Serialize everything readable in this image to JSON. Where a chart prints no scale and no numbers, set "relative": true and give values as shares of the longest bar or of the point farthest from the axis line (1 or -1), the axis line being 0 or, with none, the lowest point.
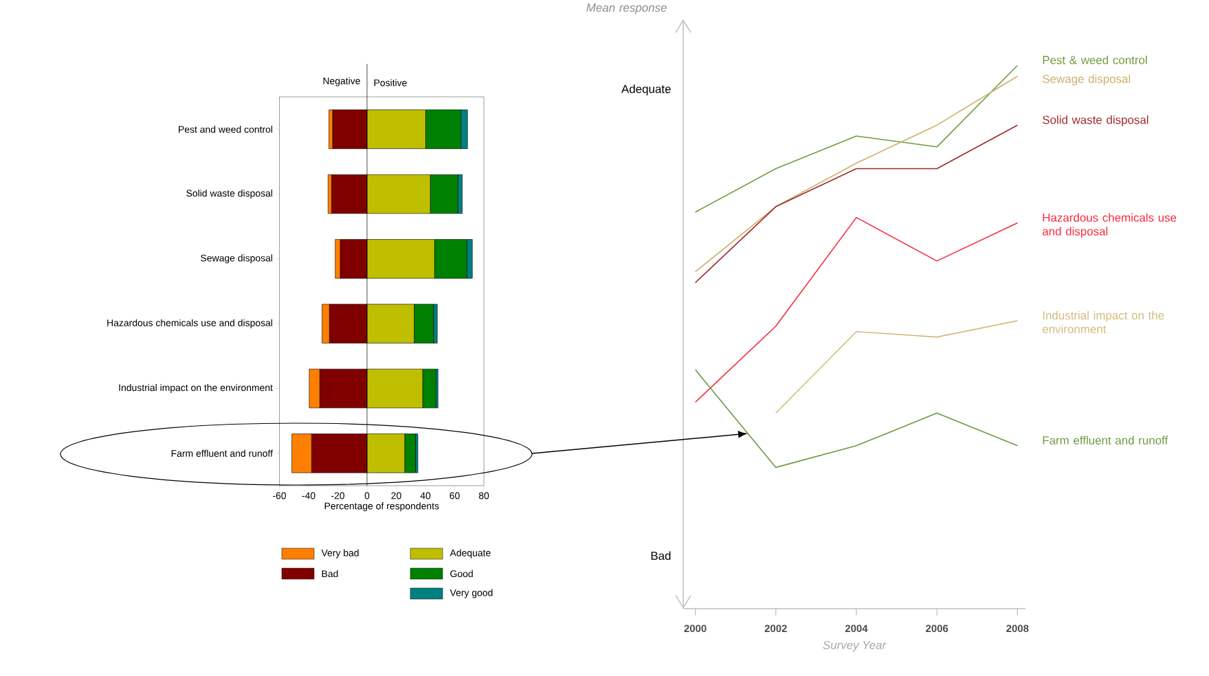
{
  "chart_data": [
    {
      "type": "bar",
      "orientation": "horizontal",
      "stacked": true,
      "categories": [
        "Pest and weed control",
        "Solid waste disposal",
        "Sewage disposal",
        "Hazardous chemicals use and disposal",
        "Industrial impact on the environment",
        "Farm effluent and runoff"
      ],
      "series": [
        {
          "name": "Bad",
          "color": "#800000",
          "values": [
            -23.6,
            -24.3,
            -18.4,
            -25.8,
            -32.4,
            -38.0
          ]
        },
        {
          "name": "Very bad",
          "color": "#ff8000",
          "values": [
            -2.5,
            -2.4,
            -3.4,
            -5.0,
            -7.2,
            -13.5
          ]
        },
        {
          "name": "Adequate",
          "color": "#bfbf00",
          "values": [
            40.2,
            43.4,
            46.3,
            32.4,
            38.2,
            25.9
          ]
        },
        {
          "name": "Good",
          "color": "#008000",
          "values": [
            24.1,
            18.9,
            22.2,
            13.2,
            9.0,
            7.3
          ]
        },
        {
          "name": "Very good",
          "color": "#008080",
          "values": [
            4.5,
            2.9,
            3.6,
            2.5,
            1.4,
            1.6
          ]
        }
      ],
      "xlim": [
        -60,
        80
      ],
      "xticks": [
        -60,
        -40,
        -20,
        0,
        20,
        40,
        60,
        80
      ],
      "xlabel": "Percentage of respondents",
      "annotations": [
        "Negative",
        "Positive"
      ],
      "ref_lines": [
        {
          "axis": "x",
          "value": 0
        }
      ],
      "legend": "bottom"
    },
    {
      "type": "line",
      "x": [
        2000,
        2002,
        2004,
        2006,
        2008
      ],
      "series": [
        {
          "name": "Pest & weed control",
          "color": "#6e9c3e",
          "values": [
            0.73,
            0.81,
            0.87,
            0.85,
            1.0
          ]
        },
        {
          "name": "Sewage disposal",
          "color": "#cdb06a",
          "values": [
            0.62,
            0.74,
            0.82,
            0.89,
            0.98
          ]
        },
        {
          "name": "Solid waste disposal",
          "color": "#a0282a",
          "values": [
            0.6,
            0.74,
            0.81,
            0.81,
            0.89
          ]
        },
        {
          "name": "Hazardous chemicals use and disposal",
          "color": "#f52a3c",
          "values": [
            0.38,
            0.52,
            0.72,
            0.64,
            0.71
          ]
        },
        {
          "name": "Industrial impact on the environment",
          "color": "#d2bb7c",
          "values": [
            null,
            0.36,
            0.51,
            0.5,
            0.53
          ]
        },
        {
          "name": "Farm effluent and runoff",
          "color": "#6a9a42",
          "values": [
            0.44,
            0.26,
            0.3,
            0.36,
            0.3
          ]
        }
      ],
      "relative": true,
      "xlim": [
        1999.7,
        2008.2
      ],
      "xticks": [
        2000,
        2002,
        2004,
        2006,
        2008
      ],
      "annotations": [
        "Adequate",
        "Bad"
      ],
      "xlabel": "Survey Year",
      "ylabel": "Mean response"
    }
  ]
}
